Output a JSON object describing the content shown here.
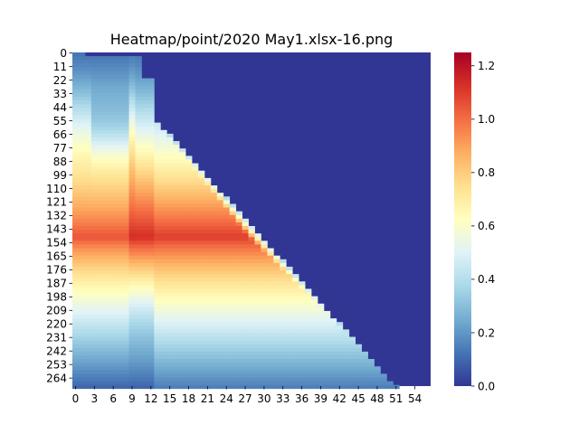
{
  "chart_data": {
    "type": "heatmap",
    "title": "Heatmap/point/2020 May1.xlsx-16.png",
    "xlabel": "",
    "ylabel": "",
    "x_ticks": [
      0,
      3,
      6,
      9,
      12,
      15,
      18,
      21,
      24,
      27,
      30,
      33,
      36,
      39,
      42,
      45,
      48,
      51,
      54
    ],
    "y_ticks": [
      0,
      11,
      22,
      33,
      44,
      55,
      66,
      77,
      88,
      99,
      110,
      121,
      132,
      143,
      154,
      165,
      176,
      187,
      198,
      209,
      220,
      231,
      242,
      253,
      264
    ],
    "n_cols": 57,
    "n_rows": 271,
    "colorbar": {
      "vmin": 0.0,
      "vmax": 1.25,
      "ticks": [
        "0.0",
        "0.2",
        "0.4",
        "0.6",
        "0.8",
        "1.0",
        "1.2"
      ],
      "colormap": "RdYlBu_r",
      "stops": [
        "#313695",
        "#4575b4",
        "#74add1",
        "#abd9e9",
        "#e0f3f8",
        "#ffffbf",
        "#fee090",
        "#fdae61",
        "#f46d43",
        "#d73027",
        "#a50026"
      ]
    },
    "structure": {
      "masked_upper_triangle_value": 0.0,
      "diagonal_start": {
        "col": 12,
        "row": 50
      },
      "diagonal_end": {
        "col": 51,
        "row": 271
      },
      "peak_row": 150,
      "peak_value": 1.05,
      "early_columns_peak_value": 1.2
    }
  }
}
